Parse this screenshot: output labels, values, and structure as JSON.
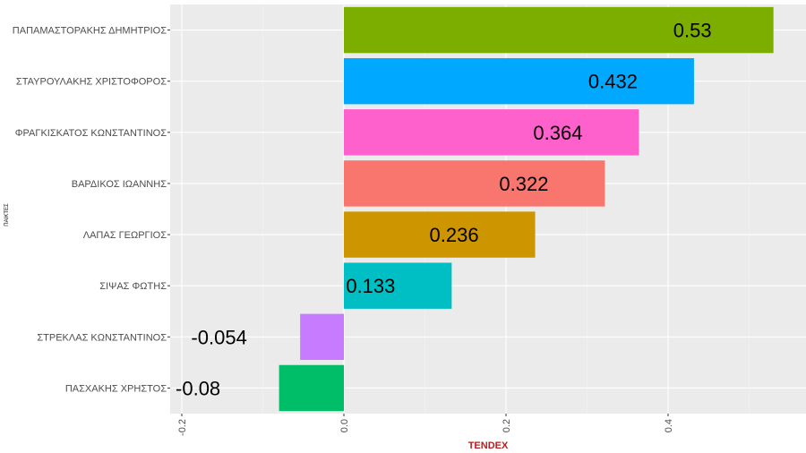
{
  "chart_data": {
    "type": "bar",
    "orientation": "horizontal",
    "xlabel": "TENDEX",
    "ylabel": "ΠΑΙΚΤΕΣ",
    "xlim": [
      -0.22,
      0.575
    ],
    "xticks": [
      -0.2,
      0.0,
      0.2,
      0.4
    ],
    "xtick_labels": [
      "-0.2",
      "0.0",
      "0.2",
      "0.4"
    ],
    "grid": true,
    "legend": "none",
    "categories": [
      "ΠΑΠΑΜΑΣΤΟΡΑΚΗΣ ΔΗΜΗΤΡΙΟΣ",
      "ΣΤΑΥΡΟΥΛΑΚΗΣ ΧΡΙΣΤΟΦΟΡΟΣ",
      "ΦΡΑΓΚΙΣΚΑΤΟΣ ΚΩΝΣΤΑΝΤΙΝΟΣ",
      "ΒΑΡΔΙΚΟΣ ΙΩΑΝΝΗΣ",
      "ΛΑΠΑΣ ΓΕΩΡΓΙΟΣ",
      "ΣΙΨΑΣ ΦΩΤΗΣ",
      "ΣΤΡΕΚΛΑΣ ΚΩΝΣΤΑΝΤΙΝΟΣ",
      "ΠΑΣΧΑΚΗΣ ΧΡΗΣΤΟΣ"
    ],
    "values": [
      0.53,
      0.432,
      0.364,
      0.322,
      0.236,
      0.133,
      -0.054,
      -0.08
    ],
    "value_labels": [
      "0.53",
      "0.432",
      "0.364",
      "0.322",
      "0.236",
      "0.133",
      "-0.054",
      "-0.08"
    ],
    "colors": [
      "#7CAE00",
      "#00A9FF",
      "#FF61CC",
      "#F8766D",
      "#CD9600",
      "#00BFC4",
      "#C77CFF",
      "#00BE67"
    ]
  },
  "style": {
    "panel_bg": "#EBEBEB",
    "grid_major": "#FFFFFF",
    "grid_minor": "#F5F5F5",
    "x_title_color": "#B22222"
  }
}
